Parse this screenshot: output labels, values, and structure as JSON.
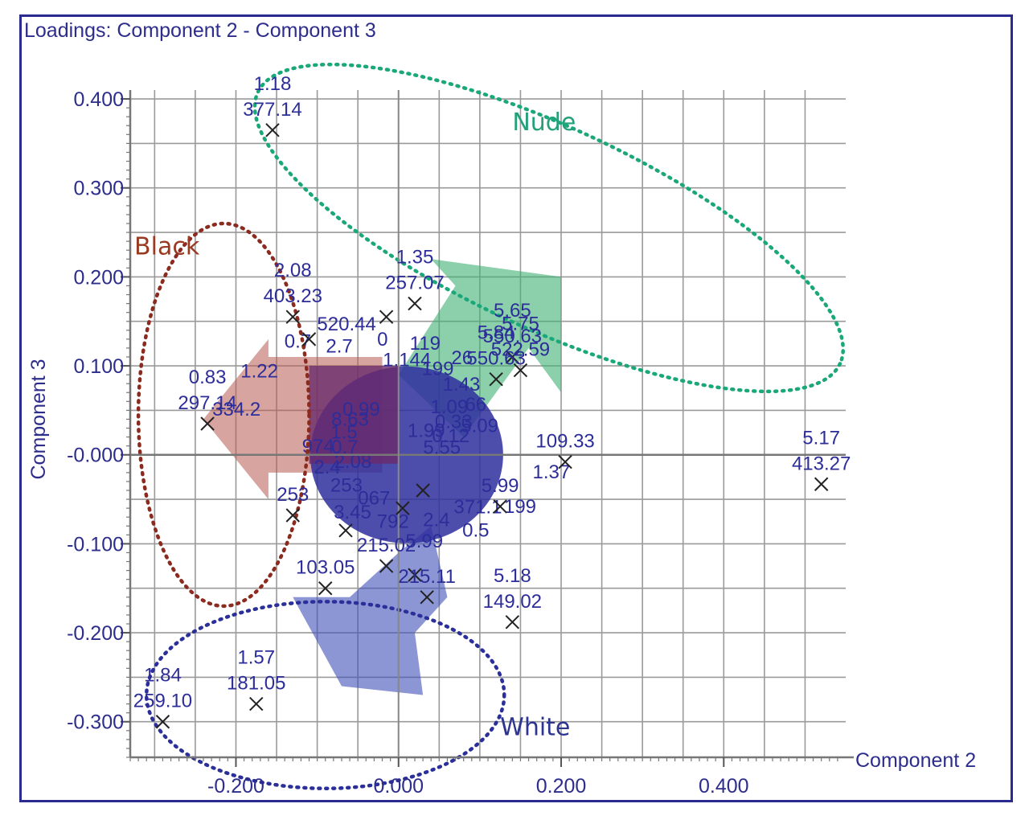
{
  "chart_data": {
    "type": "scatter",
    "title": "Loadings: Component 2 - Component 3",
    "xlabel": "Component 2",
    "ylabel": "Component 3",
    "xlim": [
      -0.33,
      0.55
    ],
    "ylim": [
      -0.34,
      0.41
    ],
    "x_ticks": [
      -0.2,
      0.0,
      0.2,
      0.4
    ],
    "x_tick_labels": [
      "-0.200",
      "0.000",
      "0.200",
      "0.400"
    ],
    "y_ticks": [
      0.4,
      0.3,
      0.2,
      0.1,
      0.0,
      -0.1,
      -0.2,
      -0.3
    ],
    "y_tick_labels": [
      "0.400",
      "0.300",
      "0.200",
      "0.100",
      "-0.000",
      "-0.100",
      "-0.200",
      "-0.300"
    ],
    "grid": true,
    "points": [
      {
        "x": -0.155,
        "y": 0.365,
        "label1": "1.18",
        "label2": "377.14"
      },
      {
        "x": -0.235,
        "y": 0.035,
        "label1": "0.83",
        "label2": "297.14"
      },
      {
        "x": -0.29,
        "y": -0.3,
        "label1": "1.84",
        "label2": "259.10"
      },
      {
        "x": -0.175,
        "y": -0.28,
        "label1": "1.57",
        "label2": "181.05"
      },
      {
        "x": 0.52,
        "y": -0.033,
        "label1": "5.17",
        "label2": "413.27"
      },
      {
        "x": 0.205,
        "y": -0.008,
        "label1": "",
        "label2": "109.33"
      },
      {
        "x": 0.14,
        "y": -0.188,
        "label1": "5.18",
        "label2": "149.02"
      },
      {
        "x": 0.035,
        "y": -0.16,
        "label1": "",
        "label2": "215.11"
      },
      {
        "x": -0.09,
        "y": -0.15,
        "label1": "",
        "label2": "103.05"
      },
      {
        "x": -0.015,
        "y": -0.125,
        "label1": "",
        "label2": "215.02"
      },
      {
        "x": 0.02,
        "y": 0.17,
        "label1": "1.35",
        "label2": "257.07"
      },
      {
        "x": -0.015,
        "y": 0.155,
        "label1": "",
        "label2": ""
      },
      {
        "x": -0.13,
        "y": 0.155,
        "label1": "2.08",
        "label2": "403.23"
      },
      {
        "x": -0.11,
        "y": 0.13,
        "label1": "",
        "label2": ""
      },
      {
        "x": 0.14,
        "y": 0.11,
        "label1": "5.65",
        "label2": "550.63"
      },
      {
        "x": 0.12,
        "y": 0.085,
        "label1": "5.84",
        "label2": "550.63"
      },
      {
        "x": 0.15,
        "y": 0.095,
        "label1": "5.75",
        "label2": "522.59"
      },
      {
        "x": 0.125,
        "y": -0.058,
        "label1": "",
        "label2": "5.99"
      },
      {
        "x": -0.13,
        "y": -0.068,
        "label1": "",
        "label2": "253"
      },
      {
        "x": -0.065,
        "y": -0.085,
        "label1": "",
        "label2": ""
      },
      {
        "x": 0.02,
        "y": -0.135,
        "label1": "",
        "label2": ""
      },
      {
        "x": 0.005,
        "y": -0.06,
        "label1": "",
        "label2": ""
      },
      {
        "x": 0.03,
        "y": -0.04,
        "label1": "",
        "label2": ""
      }
    ],
    "dense_labels": [
      "1.99",
      "2.08",
      "1.144",
      "371.1",
      "334.2",
      "1.09",
      "067",
      "2.7",
      "1.37",
      "0.7",
      "199",
      "2.4",
      "1.22",
      "0.33",
      "253",
      "0",
      "199",
      "1.5",
      "1.43",
      "792",
      "0.7",
      "0.12",
      "2.4",
      "119",
      "0.5",
      "8.63",
      "66",
      "3.45",
      "520.44",
      "5.55",
      "974",
      "26",
      "5.99",
      "0.99",
      "5.09"
    ],
    "groups": [
      {
        "name": "Nude",
        "color": "#1aa87a",
        "label_color": "#25a07a"
      },
      {
        "name": "Black",
        "color": "#8b2a1e",
        "label_color": "#9a3a22"
      },
      {
        "name": "White",
        "color": "#2a2f9a",
        "label_color": "#2d3590"
      }
    ],
    "colors": {
      "axis": "#2d2d8c",
      "grid": "#9a9a9a",
      "marker": "#222222",
      "cluster": "#2e2e9e"
    }
  }
}
